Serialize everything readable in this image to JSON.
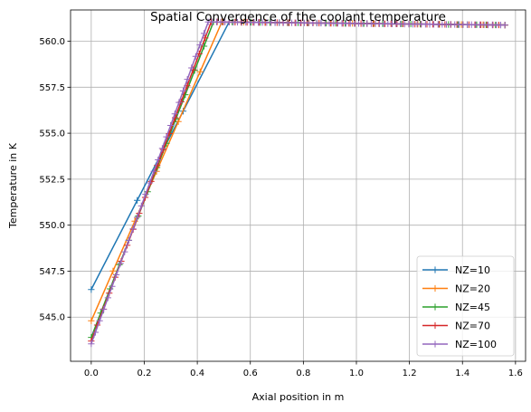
{
  "chart_data": {
    "type": "line",
    "title": "Spatial Convergence of the coolant temperature",
    "xlabel": "Axial position in m",
    "ylabel": "Temperature in K",
    "xlim": [
      -0.078,
      1.638
    ],
    "ylim": [
      542.6,
      561.7
    ],
    "xticks": [
      0.0,
      0.2,
      0.4,
      0.6,
      0.8,
      1.0,
      1.2,
      1.4,
      1.6
    ],
    "xtick_labels": [
      "0.0",
      "0.2",
      "0.4",
      "0.6",
      "0.8",
      "1.0",
      "1.2",
      "1.4",
      "1.6"
    ],
    "yticks": [
      545.0,
      547.5,
      550.0,
      552.5,
      555.0,
      557.5,
      560.0
    ],
    "ytick_labels": [
      "545.0",
      "547.5",
      "550.0",
      "552.5",
      "555.0",
      "557.5",
      "560.0"
    ],
    "grid": true,
    "legend_position": "lower right",
    "marker": "+",
    "heat_end": 0.44,
    "x_end": 1.56,
    "t_peak": 561.05,
    "t_end": 560.88,
    "series": [
      {
        "name": "NZ=10",
        "color": "#1f77b4",
        "n": 10,
        "t_start": 546.5
      },
      {
        "name": "NZ=20",
        "color": "#ff7f0e",
        "n": 20,
        "t_start": 544.8
      },
      {
        "name": "NZ=45",
        "color": "#2ca02c",
        "n": 45,
        "t_start": 543.9
      },
      {
        "name": "NZ=70",
        "color": "#d62728",
        "n": 70,
        "t_start": 543.7
      },
      {
        "name": "NZ=100",
        "color": "#9467bd",
        "n": 100,
        "t_start": 543.55
      }
    ]
  }
}
